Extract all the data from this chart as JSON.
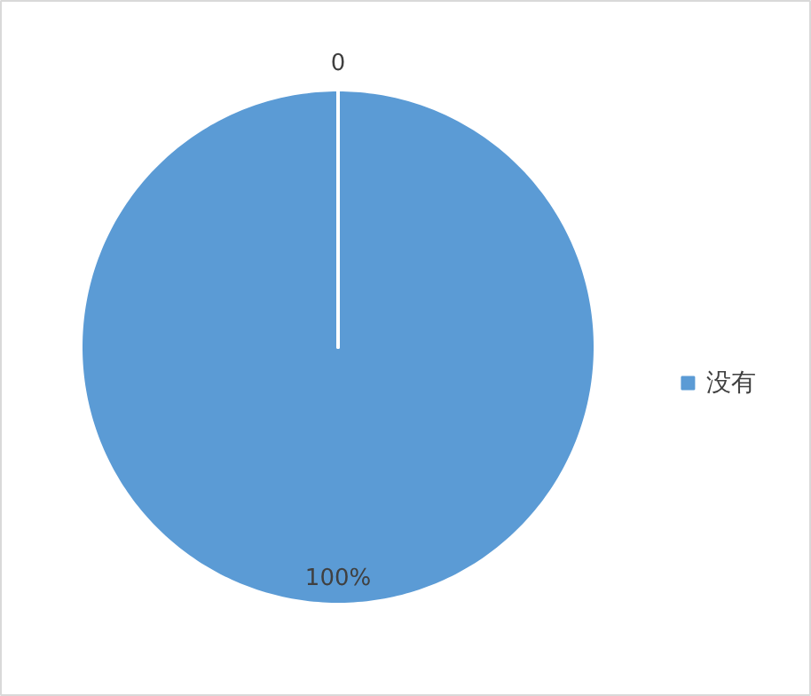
{
  "chart_data": {
    "type": "pie",
    "categories": [
      "没有",
      null
    ],
    "values": [
      100,
      0
    ],
    "colors": [
      "#5b9bd5",
      "#ed7d31"
    ],
    "value_labels": [
      "100%",
      "0"
    ],
    "legend": "right"
  }
}
